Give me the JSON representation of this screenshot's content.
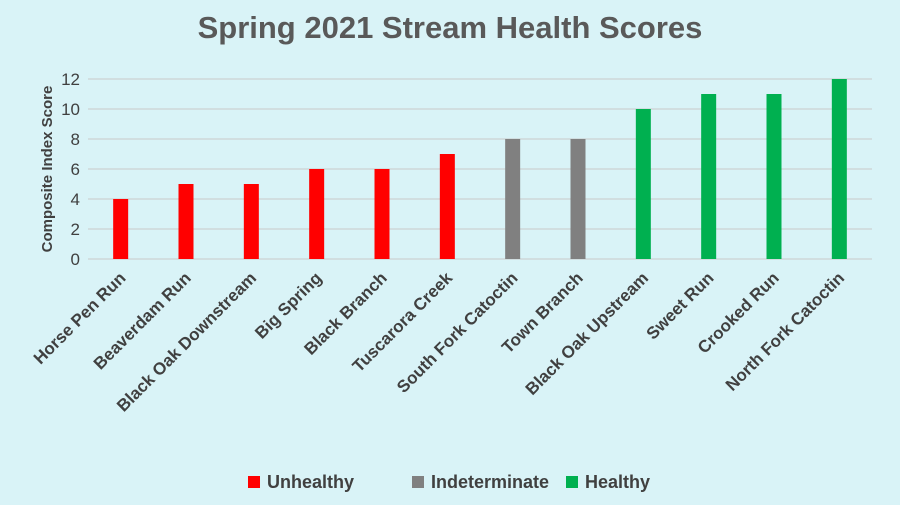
{
  "chart_data": {
    "type": "bar",
    "title": "Spring 2021 Stream Health Scores",
    "xlabel": "",
    "ylabel": "Composite Index Score",
    "ylim": [
      0,
      12
    ],
    "yticks": [
      0,
      2,
      4,
      6,
      8,
      10,
      12
    ],
    "grid": true,
    "legend_position": "bottom",
    "categories": [
      "Horse Pen Run",
      "Beaverdam Run",
      "Black Oak Downstream",
      "Big Spring",
      "Black Branch",
      "Tuscarora Creek",
      "South Fork Catoctin",
      "Town Branch",
      "Black Oak Upstream",
      "Sweet Run",
      "Crooked Run",
      "North Fork Catoctin"
    ],
    "values": [
      4,
      5,
      5,
      6,
      6,
      7,
      8,
      8,
      10,
      11,
      11,
      12
    ],
    "status": [
      "Unhealthy",
      "Unhealthy",
      "Unhealthy",
      "Unhealthy",
      "Unhealthy",
      "Unhealthy",
      "Indeterminate",
      "Indeterminate",
      "Healthy",
      "Healthy",
      "Healthy",
      "Healthy"
    ],
    "legend": [
      {
        "name": "Unhealthy",
        "color": "#ff0000"
      },
      {
        "name": "Indeterminate",
        "color": "#808080"
      },
      {
        "name": "Healthy",
        "color": "#00b050"
      }
    ]
  }
}
